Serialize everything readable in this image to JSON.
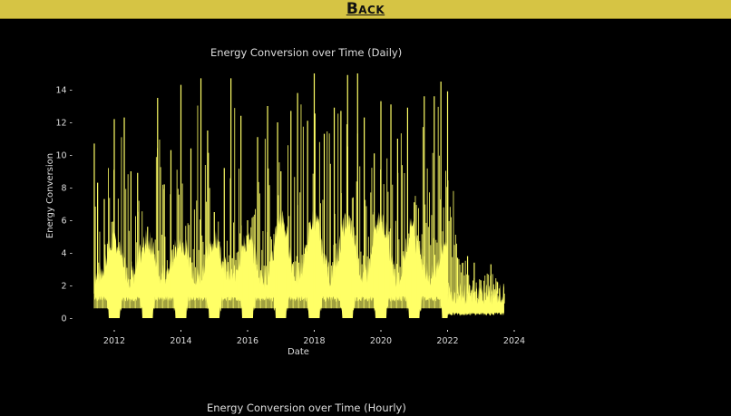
{
  "nav": {
    "back_label": "Back"
  },
  "colors": {
    "bar_bg": "#d6c444",
    "series": "#ffff66",
    "text": "#dddddd",
    "background": "#000000"
  },
  "chart_data": [
    {
      "type": "line",
      "title": "Energy Conversion over Time (Daily)",
      "xlabel": "Date",
      "ylabel": "Energy Conversion",
      "xlim": [
        2011.1,
        2024.4
      ],
      "ylim": [
        -0.7,
        15.5
      ],
      "xticks": [
        "2012",
        "2014",
        "2016",
        "2018",
        "2020",
        "2022",
        "2024"
      ],
      "yticks": [
        "0",
        "2",
        "4",
        "6",
        "8",
        "10",
        "12",
        "14"
      ],
      "grid": false,
      "legend": null,
      "series": [
        {
          "name": "Energy Conversion",
          "color": "#ffff66",
          "x": [
            2011.4,
            2011.5,
            2011.7,
            2012.0,
            2012.3,
            2012.5,
            2012.7,
            2013.0,
            2013.3,
            2013.5,
            2013.7,
            2014.0,
            2014.3,
            2014.6,
            2014.8,
            2015.0,
            2015.3,
            2015.5,
            2015.8,
            2016.0,
            2016.3,
            2016.6,
            2016.9,
            2017.0,
            2017.3,
            2017.5,
            2017.8,
            2018.0,
            2018.3,
            2018.6,
            2018.8,
            2019.0,
            2019.3,
            2019.5,
            2019.8,
            2020.0,
            2020.3,
            2020.5,
            2020.8,
            2021.0,
            2021.3,
            2021.6,
            2021.8,
            2022.0,
            2022.3,
            2022.6,
            2022.8,
            2023.0,
            2023.3,
            2023.5,
            2023.7
          ],
          "peak": [
            10.7,
            8.3,
            7.3,
            12.2,
            12.3,
            9.0,
            8.9,
            5.6,
            13.5,
            8.2,
            10.3,
            14.3,
            10.4,
            14.7,
            11.5,
            6.5,
            9.2,
            14.7,
            12.4,
            6.0,
            11.1,
            13.0,
            12.0,
            9.0,
            12.7,
            13.8,
            12.1,
            15.0,
            11.3,
            12.9,
            12.7,
            14.9,
            15.0,
            12.3,
            10.1,
            13.3,
            13.1,
            11.0,
            12.9,
            7.1,
            13.6,
            13.6,
            14.5,
            13.9,
            3.7,
            3.8,
            3.4,
            2.3,
            3.3,
            2.2,
            0.9
          ],
          "baseline": [
            1.0,
            1.2,
            0.6,
            0.0,
            1.2,
            1.2,
            0.0,
            1.2,
            1.2,
            0.0,
            1.2,
            1.2,
            0.0,
            1.2,
            1.2,
            0.0,
            1.2,
            1.2,
            0.0,
            1.2,
            1.2,
            0.0,
            1.2,
            1.2,
            0.0,
            1.2,
            1.2,
            0.0,
            1.2,
            1.2,
            0.0,
            1.2,
            1.2,
            0.0,
            1.2,
            1.2,
            0.0,
            1.2,
            1.2,
            0.0,
            1.2,
            1.0,
            0.5,
            0.3,
            0.3,
            0.2,
            0.2,
            0.2,
            0.2,
            0.2,
            0.2
          ]
        }
      ]
    },
    {
      "type": "line",
      "title": "Energy Conversion over Time (Hourly)"
    }
  ]
}
